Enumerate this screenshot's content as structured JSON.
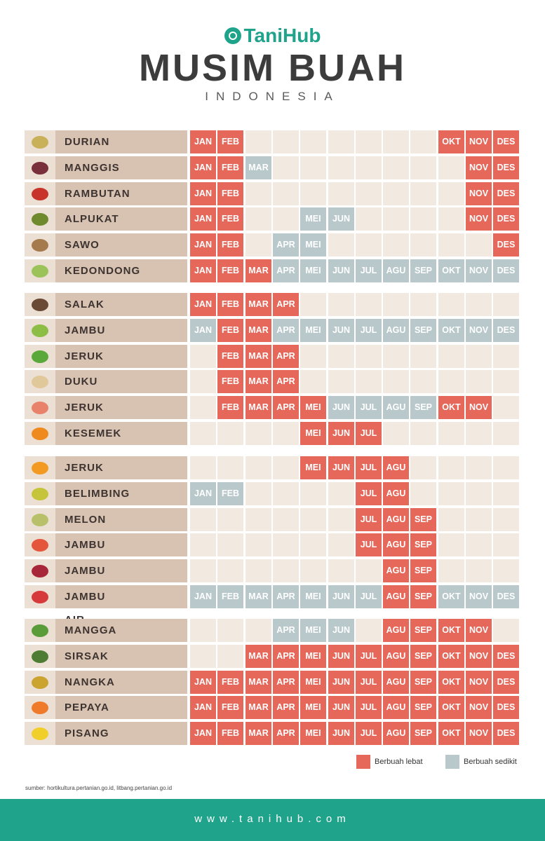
{
  "header": {
    "brand": "TaniHub",
    "title": "MUSIM BUAH",
    "subtitle": "INDONESIA"
  },
  "chart_data": {
    "type": "table",
    "title": "MUSIM BUAH",
    "months": [
      "JAN",
      "FEB",
      "MAR",
      "APR",
      "MEI",
      "JUN",
      "JUL",
      "AGU",
      "SEP",
      "OKT",
      "NOV",
      "DES"
    ],
    "legend": [
      {
        "key": "full",
        "label": "Berbuah lebat",
        "color": "#e5685a"
      },
      {
        "key": "low",
        "label": "Berbuah sedikit",
        "color": "#b9c9cb"
      }
    ],
    "groups": [
      [
        {
          "name": "DURIAN",
          "icon": "durian-icon",
          "color": "#c9b15a",
          "status": [
            "full",
            "full",
            "",
            "",
            "",
            "",
            "",
            "",
            "",
            "full",
            "full",
            "full"
          ]
        },
        {
          "name": "MANGGIS",
          "icon": "mangosteen-icon",
          "color": "#7a2f3c",
          "status": [
            "full",
            "full",
            "low",
            "",
            "",
            "",
            "",
            "",
            "",
            "",
            "full",
            "full"
          ]
        },
        {
          "name": "RAMBUTAN",
          "icon": "rambutan-icon",
          "color": "#c8342b",
          "status": [
            "full",
            "full",
            "",
            "",
            "",
            "",
            "",
            "",
            "",
            "",
            "full",
            "full"
          ]
        },
        {
          "name": "ALPUKAT",
          "icon": "avocado-icon",
          "color": "#6f8a2d",
          "status": [
            "full",
            "full",
            "",
            "",
            "low",
            "low",
            "",
            "",
            "",
            "",
            "full",
            "full"
          ]
        },
        {
          "name": "SAWO",
          "icon": "sapodilla-icon",
          "color": "#a57a4c",
          "status": [
            "full",
            "full",
            "",
            "low",
            "low",
            "",
            "",
            "",
            "",
            "",
            "",
            "full"
          ]
        },
        {
          "name": "KEDONDONG",
          "icon": "kedondong-icon",
          "color": "#9cc25a",
          "status": [
            "full",
            "full",
            "full",
            "low",
            "low",
            "low",
            "low",
            "low",
            "low",
            "low",
            "low",
            "low"
          ]
        }
      ],
      [
        {
          "name": "SALAK",
          "icon": "salak-icon",
          "color": "#6b4a35",
          "status": [
            "full",
            "full",
            "full",
            "full",
            "",
            "",
            "",
            "",
            "",
            "",
            "",
            ""
          ]
        },
        {
          "name": "JAMBU BIJI",
          "icon": "guava-icon",
          "color": "#8cbd45",
          "status": [
            "low",
            "full",
            "full",
            "low",
            "low",
            "low",
            "low",
            "low",
            "low",
            "low",
            "low",
            "low"
          ]
        },
        {
          "name": "JERUK NIPIS",
          "icon": "lime-icon",
          "color": "#5aa83a",
          "status": [
            "",
            "full",
            "full",
            "full",
            "",
            "",
            "",
            "",
            "",
            "",
            "",
            ""
          ]
        },
        {
          "name": "DUKU",
          "icon": "duku-icon",
          "color": "#e0c89a",
          "status": [
            "",
            "full",
            "full",
            "full",
            "",
            "",
            "",
            "",
            "",
            "",
            "",
            ""
          ]
        },
        {
          "name": "JERUK BALI",
          "icon": "pomelo-icon",
          "color": "#e9826a",
          "status": [
            "",
            "full",
            "full",
            "full",
            "full",
            "low",
            "low",
            "low",
            "low",
            "full",
            "full",
            ""
          ]
        },
        {
          "name": "KESEMEK",
          "icon": "persimmon-icon",
          "color": "#ef8a1f",
          "status": [
            "",
            "",
            "",
            "",
            "full",
            "full",
            "full",
            "",
            "",
            "",
            "",
            ""
          ]
        }
      ],
      [
        {
          "name": "JERUK MANIS",
          "icon": "orange-icon",
          "color": "#f39a22",
          "status": [
            "",
            "",
            "",
            "",
            "full",
            "full",
            "full",
            "full",
            "",
            "",
            "",
            ""
          ]
        },
        {
          "name": "BELIMBING",
          "icon": "starfruit-icon",
          "color": "#c6c43a",
          "status": [
            "low",
            "low",
            "",
            "",
            "",
            "",
            "full",
            "full",
            "",
            "",
            "",
            ""
          ]
        },
        {
          "name": "MELON",
          "icon": "melon-icon",
          "color": "#b8c06a",
          "status": [
            "",
            "",
            "",
            "",
            "",
            "",
            "full",
            "full",
            "full",
            "",
            "",
            ""
          ]
        },
        {
          "name": "JAMBU METE",
          "icon": "cashew-fruit-icon",
          "color": "#e4573a",
          "status": [
            "",
            "",
            "",
            "",
            "",
            "",
            "full",
            "full",
            "full",
            "",
            "",
            ""
          ]
        },
        {
          "name": "JAMBU BOL",
          "icon": "malay-apple-icon",
          "color": "#a8263a",
          "status": [
            "",
            "",
            "",
            "",
            "",
            "",
            "",
            "full",
            "full",
            "",
            "",
            ""
          ]
        },
        {
          "name": "JAMBU AIR",
          "icon": "water-apple-icon",
          "color": "#d73a3a",
          "status": [
            "low",
            "low",
            "low",
            "low",
            "low",
            "low",
            "low",
            "full",
            "full",
            "low",
            "low",
            "low"
          ]
        }
      ],
      [
        {
          "name": "MANGGA",
          "icon": "mango-icon",
          "color": "#5a9c3a",
          "status": [
            "",
            "",
            "",
            "low",
            "low",
            "low",
            "",
            "full",
            "full",
            "full",
            "full",
            ""
          ]
        },
        {
          "name": "SIRSAK",
          "icon": "soursop-icon",
          "color": "#4f7c35",
          "status": [
            "",
            "",
            "full",
            "full",
            "full",
            "full",
            "full",
            "full",
            "full",
            "full",
            "full",
            "full"
          ]
        },
        {
          "name": "NANGKA",
          "icon": "jackfruit-icon",
          "color": "#caa42e",
          "status": [
            "full",
            "full",
            "full",
            "full",
            "full",
            "full",
            "full",
            "full",
            "full",
            "full",
            "full",
            "full"
          ]
        },
        {
          "name": "PEPAYA",
          "icon": "papaya-icon",
          "color": "#ef7a2a",
          "status": [
            "full",
            "full",
            "full",
            "full",
            "full",
            "full",
            "full",
            "full",
            "full",
            "full",
            "full",
            "full"
          ]
        },
        {
          "name": "PISANG",
          "icon": "banana-icon",
          "color": "#f1cf2a",
          "status": [
            "full",
            "full",
            "full",
            "full",
            "full",
            "full",
            "full",
            "full",
            "full",
            "full",
            "full",
            "full"
          ]
        }
      ]
    ]
  },
  "source": "sumber: hortikultura.pertanian.go.id, litbang.pertanian.go.id",
  "footer": {
    "url": "www.tanihub.com"
  }
}
